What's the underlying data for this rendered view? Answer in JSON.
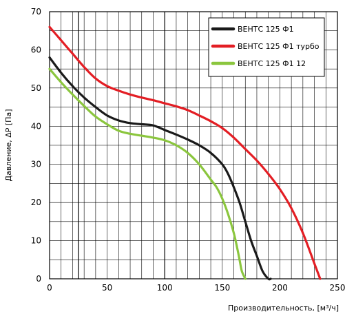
{
  "chart_data": {
    "type": "line",
    "xlabel": "Производительность, [м³/ч]",
    "ylabel": "Давление, ΔР [Па]",
    "xlim": [
      0,
      250
    ],
    "ylim": [
      0,
      70
    ],
    "x_ticks": [
      0,
      50,
      100,
      150,
      200,
      250
    ],
    "y_ticks": [
      0,
      10,
      20,
      30,
      40,
      50,
      60,
      70
    ],
    "grid": true,
    "legend_position": "top-right",
    "series": [
      {
        "name": "ВЕНТС 125 Ф1",
        "color": "#1a1a1a",
        "x": [
          0,
          10,
          20,
          30,
          40,
          50,
          60,
          70,
          80,
          90,
          100,
          110,
          120,
          130,
          140,
          150,
          155,
          160,
          165,
          170,
          175,
          180,
          185,
          190,
          192
        ],
        "y": [
          58,
          54,
          50.5,
          47.5,
          45,
          42.8,
          41.5,
          40.8,
          40.5,
          40.2,
          39,
          37.8,
          36.5,
          35,
          33,
          30,
          27.5,
          24,
          20,
          15,
          10,
          6,
          2,
          0,
          0
        ]
      },
      {
        "name": "ВЕНТС 125 Ф1 турбо",
        "color": "#e31e24",
        "x": [
          0,
          10,
          20,
          30,
          40,
          50,
          60,
          70,
          80,
          90,
          100,
          110,
          120,
          130,
          140,
          150,
          160,
          170,
          180,
          190,
          200,
          210,
          220,
          230,
          235
        ],
        "y": [
          66,
          62.5,
          59,
          55.5,
          52.5,
          50.5,
          49.3,
          48.3,
          47.5,
          46.8,
          46,
          45.2,
          44.2,
          42.8,
          41.3,
          39.5,
          37,
          34,
          31,
          27.5,
          23.5,
          18.5,
          12,
          4,
          0
        ]
      },
      {
        "name": "ВЕНТС 125 Ф1 12",
        "color": "#8bc63e",
        "x": [
          0,
          10,
          20,
          30,
          40,
          50,
          60,
          70,
          80,
          90,
          100,
          110,
          120,
          130,
          140,
          145,
          150,
          155,
          160,
          163,
          165,
          167,
          170
        ],
        "y": [
          55,
          51.5,
          48.3,
          45.3,
          42.5,
          40.5,
          38.8,
          38,
          37.5,
          37,
          36.3,
          35,
          33,
          30,
          26,
          24,
          21,
          17,
          12,
          8,
          5,
          2,
          0
        ]
      }
    ]
  }
}
